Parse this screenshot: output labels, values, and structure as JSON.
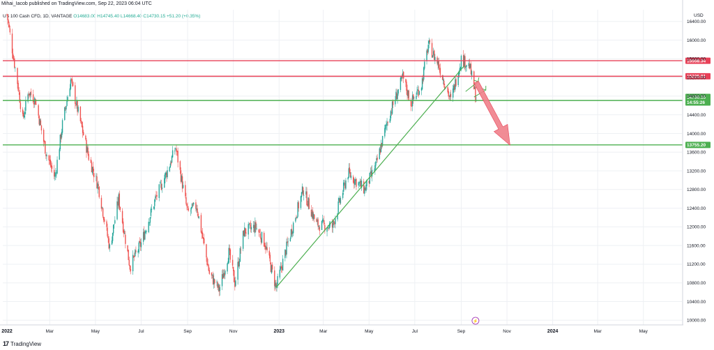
{
  "header": {
    "published_line": "Mihai_Iacob published on TradingView.com, Sep 22, 2023 06:04 UTC",
    "legend_symbol": "US 100 Cash CFD, 1D, VANTAGE",
    "legend_values": "O14683.00 H14745.40 L14668.40 C14730.15 +51.20 (+0.35%)"
  },
  "footer": {
    "brand": "TradingView",
    "logo_text": "17"
  },
  "colors": {
    "up": "#26a69a",
    "down": "#ef5350",
    "resistance": "#e84057",
    "support": "#4caf50",
    "trendline": "#4caf50",
    "projection_arrow": "#f0808a",
    "grid": "#eef0f4",
    "axis_text": "#131722"
  },
  "chart_data": {
    "type": "candlestick",
    "currency_label": "USD",
    "x_labels": [
      "2022",
      "Mar",
      "May",
      "Jul",
      "Sep",
      "Nov",
      "2023",
      "Mar",
      "May",
      "Jul",
      "Sep",
      "Nov",
      "2024",
      "Mar",
      "May"
    ],
    "y_ticks": [
      16400,
      16000,
      15600,
      15200,
      14800,
      14400,
      14000,
      13600,
      13200,
      12800,
      12400,
      12000,
      11600,
      11200,
      10800,
      10400,
      10000
    ],
    "ylim": [
      9900,
      16650
    ],
    "close_path": [
      [
        "2022-01-03",
        16550
      ],
      [
        "2022-01-10",
        15800
      ],
      [
        "2022-01-17",
        15100
      ],
      [
        "2022-01-24",
        14300
      ],
      [
        "2022-02-01",
        14900
      ],
      [
        "2022-02-10",
        14700
      ],
      [
        "2022-02-24",
        13600
      ],
      [
        "2022-03-08",
        13050
      ],
      [
        "2022-03-18",
        14200
      ],
      [
        "2022-03-29",
        15150
      ],
      [
        "2022-04-08",
        14450
      ],
      [
        "2022-04-22",
        13500
      ],
      [
        "2022-05-05",
        12850
      ],
      [
        "2022-05-20",
        11550
      ],
      [
        "2022-06-01",
        12600
      ],
      [
        "2022-06-16",
        11150
      ],
      [
        "2022-07-01",
        11650
      ],
      [
        "2022-07-20",
        12600
      ],
      [
        "2022-08-05",
        13200
      ],
      [
        "2022-08-16",
        13700
      ],
      [
        "2022-09-01",
        12300
      ],
      [
        "2022-09-13",
        12450
      ],
      [
        "2022-09-30",
        11000
      ],
      [
        "2022-10-13",
        10650
      ],
      [
        "2022-10-26",
        11450
      ],
      [
        "2022-11-03",
        10800
      ],
      [
        "2022-11-15",
        11900
      ],
      [
        "2022-12-01",
        12000
      ],
      [
        "2022-12-13",
        11650
      ],
      [
        "2022-12-28",
        10700
      ],
      [
        "2023-01-10",
        11500
      ],
      [
        "2023-02-02",
        12800
      ],
      [
        "2023-02-20",
        12050
      ],
      [
        "2023-03-13",
        12000
      ],
      [
        "2023-04-03",
        13150
      ],
      [
        "2023-04-25",
        12800
      ],
      [
        "2023-05-10",
        13300
      ],
      [
        "2023-05-26",
        14300
      ],
      [
        "2023-06-15",
        15200
      ],
      [
        "2023-06-26",
        14650
      ],
      [
        "2023-07-10",
        15050
      ],
      [
        "2023-07-19",
        15900
      ],
      [
        "2023-08-01",
        15500
      ],
      [
        "2023-08-18",
        14700
      ],
      [
        "2023-09-01",
        15600
      ],
      [
        "2023-09-12",
        15450
      ],
      [
        "2023-09-21",
        14730
      ]
    ],
    "horizontal_levels": [
      {
        "value": 15558.34,
        "label": "15558.34",
        "role": "resistance"
      },
      {
        "value": 15225.81,
        "label": "15225.81",
        "role": "resistance"
      },
      {
        "value": 14706.58,
        "label": "14706.58",
        "role": "support"
      },
      {
        "value": 13755.2,
        "label": "13755.20",
        "role": "support"
      }
    ],
    "last_price": {
      "value": 14730.15,
      "label": "14730.15",
      "countdown": "14:55:26"
    },
    "trendline": [
      [
        "2022-12-28",
        10700
      ],
      [
        "2023-09-05",
        15450
      ]
    ],
    "projection_up": [
      [
        "2023-09-18",
        14780
      ],
      [
        "2023-10-01",
        15230
      ]
    ],
    "projection_down": [
      [
        "2023-09-21",
        15100
      ],
      [
        "2023-11-05",
        13750
      ]
    ],
    "event_marker": {
      "date": "2023-09-20",
      "symbol": "⚡"
    }
  }
}
